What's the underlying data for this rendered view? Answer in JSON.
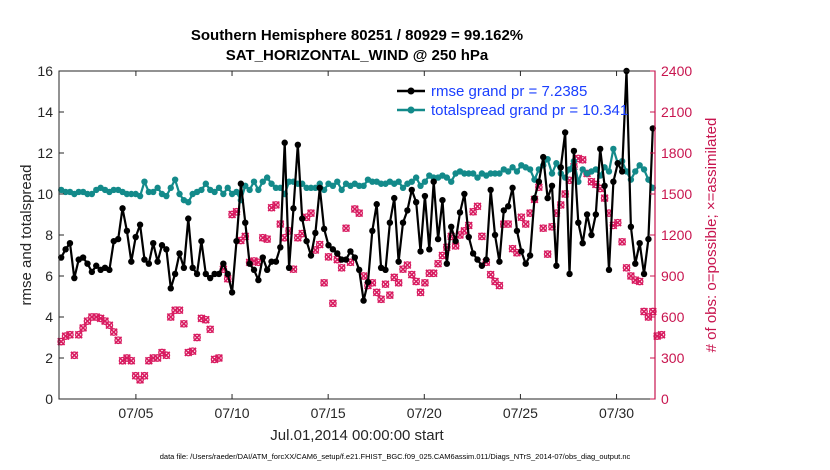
{
  "chart_data": {
    "type": "line",
    "title": "Southern Hemisphere 80251 / 80929 = 99.162%",
    "subtitle": "SAT_HORIZONTAL_WIND @ 250 hPa",
    "xlabel": "Jul.01,2014 00:00:00 start",
    "ylabel": "rmse and totalspread",
    "ylabel_right": "# of obs: o=possible; ×=assimilated",
    "footer": "data file: /Users/raeder/DAI/ATM_forcXX/CAM6_setup/f.e21.FHIST_BGC.f09_025.CAM6assim.011/Diags_NTrS_2014-07/obs_diag_output.nc",
    "xlim": [
      1,
      32
    ],
    "ylim": [
      0,
      16
    ],
    "ylim_right": [
      0,
      2400
    ],
    "yticks": [
      "0",
      "2",
      "4",
      "6",
      "8",
      "10",
      "12",
      "14",
      "16"
    ],
    "yticks_right": [
      "0",
      "300",
      "600",
      "900",
      "1200",
      "1500",
      "1800",
      "2100",
      "2400"
    ],
    "xticks": [
      {
        "label": "07/05",
        "value": 5
      },
      {
        "label": "07/10",
        "value": 10
      },
      {
        "label": "07/15",
        "value": 15
      },
      {
        "label": "07/20",
        "value": 20
      },
      {
        "label": "07/25",
        "value": 25
      },
      {
        "label": "07/30",
        "value": 30
      }
    ],
    "legend_position": "top-right",
    "colors": {
      "rmse": "#000000",
      "spread": "#138a8a",
      "obs": "#d81b60",
      "right_axis": "#c8154f",
      "legend_text": "#1a3fff"
    },
    "series": [
      {
        "name": "rmse grand pr = 7.2385",
        "values": [
          6.9,
          7.3,
          7.6,
          5.9,
          6.8,
          6.9,
          6.6,
          6.2,
          6.5,
          6.3,
          6.4,
          6.3,
          7.7,
          7.8,
          9.3,
          8.2,
          6.7,
          7.9,
          8.5,
          6.8,
          6.6,
          7.6,
          6.7,
          7.5,
          7.3,
          5.4,
          6.1,
          7.1,
          6.4,
          8.8,
          6.4,
          6.1,
          7.7,
          6.1,
          5.9,
          6.1,
          6.1,
          6.6,
          6.1,
          5.2,
          7.7,
          10.5,
          8.6,
          6.6,
          6.3,
          5.8,
          6.9,
          6.3,
          6.7,
          6.7,
          7.4,
          12.5,
          6.4,
          9.3,
          12.4,
          8.8,
          7.7,
          7.0,
          8.1,
          10.3,
          8.3,
          7.5,
          7.3,
          7.1,
          6.8,
          6.8,
          7.2,
          6.9,
          6.3,
          4.8,
          5.7,
          8.2,
          9.5,
          6.4,
          6.3,
          8.6,
          9.8,
          6.7,
          8.6,
          9.2,
          10.2,
          9.6,
          7.2,
          9.9,
          7.3,
          10.6,
          7.8,
          9.7,
          6.6,
          8.4,
          7.7,
          9.1,
          10.0,
          7.9,
          7.1,
          6.8,
          6.5,
          6.8,
          10.2,
          8.0,
          6.7,
          9.2,
          9.4,
          10.3,
          8.2,
          7.2,
          6.6,
          7.0,
          9.8,
          10.6,
          11.8,
          9.8,
          10.4,
          6.5,
          11.3,
          13.0,
          6.1,
          12.1,
          8.6,
          7.6,
          9.0,
          8.0,
          9.0,
          12.2,
          10.4,
          6.3,
          10.6,
          11.5,
          11.1,
          16.0,
          8.4,
          6.6,
          7.6,
          6.1,
          7.8,
          13.2
        ]
      },
      {
        "name": "totalspread grand pr = 10.341",
        "values": [
          10.2,
          10.1,
          10.1,
          10.0,
          10.1,
          10.1,
          10.0,
          10.0,
          10.2,
          10.3,
          10.2,
          10.1,
          10.2,
          10.2,
          10.1,
          10.0,
          10.0,
          10.0,
          9.9,
          10.6,
          10.1,
          10.1,
          10.3,
          10.0,
          9.9,
          10.3,
          10.7,
          10.0,
          9.7,
          9.6,
          10.0,
          10.1,
          10.2,
          10.5,
          10.2,
          10.1,
          10.3,
          10.0,
          10.3,
          10.0,
          10.1,
          9.7,
          10.4,
          10.2,
          10.6,
          10.2,
          10.6,
          10.8,
          10.5,
          10.3,
          10.3,
          10.0,
          10.6,
          10.6,
          10.5,
          10.5,
          10.3,
          10.3,
          10.3,
          10.5,
          10.2,
          10.5,
          10.4,
          10.6,
          10.2,
          10.5,
          10.4,
          10.5,
          10.4,
          10.4,
          10.7,
          10.6,
          10.6,
          10.5,
          10.5,
          10.6,
          10.5,
          10.6,
          10.3,
          10.5,
          10.6,
          10.8,
          10.4,
          10.6,
          10.9,
          10.8,
          10.8,
          10.9,
          10.8,
          10.6,
          11.0,
          11.1,
          11.0,
          11.0,
          11.0,
          10.8,
          11.0,
          10.9,
          11.0,
          11.0,
          11.0,
          11.2,
          11.1,
          11.3,
          11.1,
          11.4,
          11.3,
          11.2,
          10.7,
          11.2,
          11.4,
          11.7,
          11.0,
          11.5,
          11.0,
          10.8,
          11.2,
          11.6,
          10.6,
          11.2,
          11.0,
          11.1,
          11.2,
          10.9,
          11.3,
          11.1,
          12.2,
          11.5,
          11.6,
          11.1,
          10.7,
          11.1,
          11.4,
          11.2,
          10.7,
          10.3
        ]
      },
      {
        "name": "# of obs possible",
        "values": [
          420,
          460,
          470,
          320,
          470,
          520,
          570,
          600,
          600,
          590,
          570,
          540,
          490,
          430,
          280,
          300,
          280,
          170,
          140,
          170,
          280,
          300,
          300,
          340,
          320,
          600,
          650,
          650,
          550,
          340,
          350,
          450,
          590,
          580,
          510,
          290,
          300,
          950,
          880,
          1350,
          1370,
          1160,
          1190,
          1000,
          1010,
          1000,
          1180,
          1170,
          1400,
          1420,
          1280,
          1180,
          1230,
          950,
          1180,
          1210,
          1330,
          1360,
          1090,
          1130,
          850,
          1040,
          700,
          1020,
          960,
          1250,
          1000,
          1390,
          1360,
          900,
          830,
          850,
          780,
          730,
          840,
          760,
          890,
          850,
          950,
          980,
          910,
          860,
          780,
          850,
          920,
          920,
          990,
          1050,
          1110,
          1190,
          1120,
          1200,
          1230,
          1270,
          1370,
          1410,
          1190,
          1000,
          910,
          860,
          830,
          1280,
          1280,
          1100,
          1070,
          1330,
          1280,
          1360,
          1460,
          1550,
          1250,
          1060,
          1260,
          1360,
          1420,
          1500,
          1600,
          1700,
          1760,
          1750,
          1650,
          1590,
          1570,
          1540,
          1470,
          1360,
          1270,
          1290,
          1150,
          960,
          900,
          870,
          860,
          640,
          600,
          640,
          460,
          470
        ]
      },
      {
        "name": "# of obs assimilated",
        "values": [
          420,
          460,
          470,
          320,
          470,
          520,
          570,
          600,
          600,
          590,
          570,
          540,
          490,
          430,
          280,
          300,
          280,
          170,
          140,
          170,
          280,
          300,
          300,
          340,
          320,
          600,
          650,
          650,
          550,
          340,
          350,
          450,
          590,
          580,
          510,
          290,
          300,
          950,
          880,
          1350,
          1370,
          1160,
          1190,
          1000,
          1010,
          1000,
          1180,
          1170,
          1400,
          1420,
          1280,
          1180,
          1230,
          950,
          1180,
          1210,
          1330,
          1360,
          1090,
          1130,
          850,
          1040,
          700,
          1020,
          960,
          1250,
          1000,
          1390,
          1360,
          900,
          830,
          850,
          780,
          730,
          840,
          760,
          890,
          850,
          950,
          980,
          910,
          860,
          780,
          850,
          920,
          920,
          990,
          1050,
          1110,
          1190,
          1120,
          1200,
          1230,
          1270,
          1370,
          1410,
          1190,
          1000,
          910,
          860,
          830,
          1280,
          1280,
          1100,
          1070,
          1330,
          1280,
          1360,
          1460,
          1550,
          1250,
          1060,
          1260,
          1360,
          1420,
          1500,
          1600,
          1700,
          1760,
          1750,
          1650,
          1590,
          1570,
          1540,
          1470,
          1360,
          1270,
          1290,
          1150,
          960,
          900,
          870,
          860,
          640,
          600,
          640,
          460,
          470
        ]
      }
    ]
  }
}
